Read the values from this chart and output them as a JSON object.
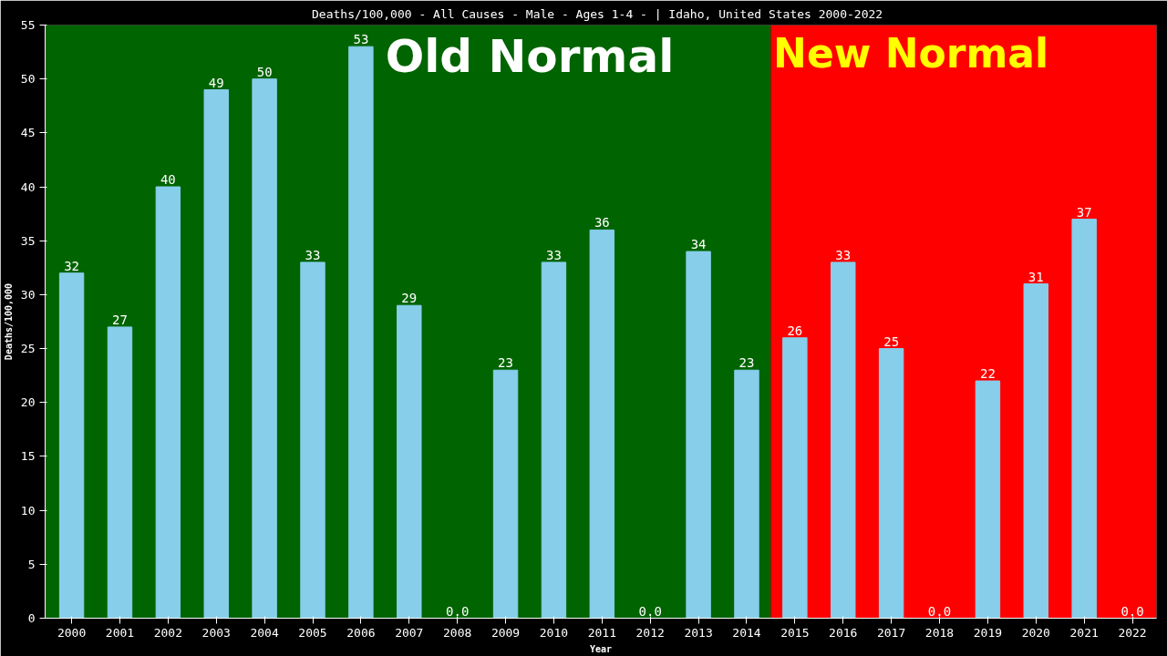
{
  "chart_data": {
    "type": "bar",
    "title": "Deaths/100,000 - All Causes - Male - Ages 1-4 -  | Idaho, United States 2000-2022",
    "xlabel": "Year",
    "ylabel": "Deaths/100,000",
    "categories": [
      "2000",
      "2001",
      "2002",
      "2003",
      "2004",
      "2005",
      "2006",
      "2007",
      "2008",
      "2009",
      "2010",
      "2011",
      "2012",
      "2013",
      "2014",
      "2015",
      "2016",
      "2017",
      "2018",
      "2019",
      "2020",
      "2021",
      "2022"
    ],
    "values": [
      32,
      27,
      40,
      49,
      50,
      33,
      53,
      29,
      0,
      23,
      33,
      36,
      0,
      34,
      23,
      26,
      33,
      25,
      0,
      22,
      31,
      37,
      0
    ],
    "value_labels": [
      "32",
      "27",
      "40",
      "49",
      "50",
      "33",
      "53",
      "29",
      "0.0",
      "23",
      "33",
      "36",
      "0.0",
      "34",
      "23",
      "26",
      "33",
      "25",
      "0.0",
      "22",
      "31",
      "37",
      "0.0"
    ],
    "color": "#87ceeb",
    "ylim": [
      0,
      55
    ],
    "yticks": [
      0,
      5,
      10,
      15,
      20,
      25,
      30,
      35,
      40,
      45,
      50,
      55
    ],
    "bands": [
      {
        "axis": "x",
        "from": "2000",
        "to": "2014",
        "label": "Old Normal",
        "color": "#006400"
      },
      {
        "axis": "x",
        "from": "2015",
        "to": "2022",
        "label": "New Normal",
        "color": "#ff0000"
      }
    ],
    "grid": false
  }
}
